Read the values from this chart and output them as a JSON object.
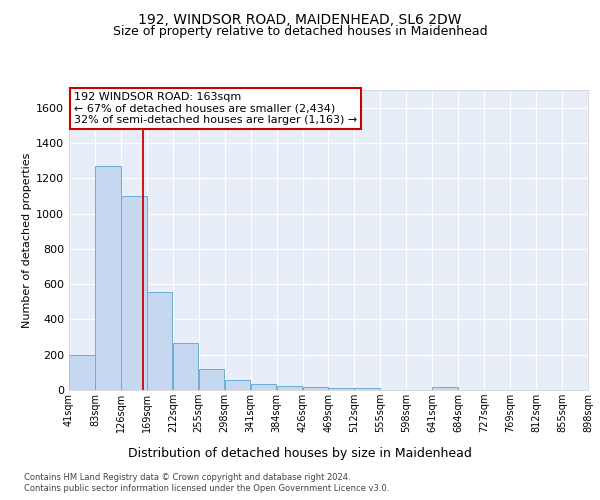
{
  "title1": "192, WINDSOR ROAD, MAIDENHEAD, SL6 2DW",
  "title2": "Size of property relative to detached houses in Maidenhead",
  "xlabel": "Distribution of detached houses by size in Maidenhead",
  "ylabel": "Number of detached properties",
  "footer1": "Contains HM Land Registry data © Crown copyright and database right 2024.",
  "footer2": "Contains public sector information licensed under the Open Government Licence v3.0.",
  "annotation_line1": "192 WINDSOR ROAD: 163sqm",
  "annotation_line2": "← 67% of detached houses are smaller (2,434)",
  "annotation_line3": "32% of semi-detached houses are larger (1,163) →",
  "bar_color": "#c5d8f0",
  "bar_edge_color": "#6aaed6",
  "vline_color": "#cc0000",
  "vline_x": 163,
  "ylim": [
    0,
    1700
  ],
  "yticks": [
    0,
    200,
    400,
    600,
    800,
    1000,
    1200,
    1400,
    1600
  ],
  "bin_edges": [
    41,
    84,
    127,
    170,
    213,
    256,
    299,
    342,
    385,
    428,
    471,
    514,
    557,
    600,
    643,
    686,
    729,
    772,
    815,
    858,
    901
  ],
  "bin_values": [
    200,
    1270,
    1100,
    555,
    265,
    120,
    58,
    32,
    20,
    15,
    10,
    10,
    0,
    0,
    15,
    0,
    0,
    0,
    0,
    0
  ],
  "xtick_labels": [
    "41sqm",
    "83sqm",
    "126sqm",
    "169sqm",
    "212sqm",
    "255sqm",
    "298sqm",
    "341sqm",
    "384sqm",
    "426sqm",
    "469sqm",
    "512sqm",
    "555sqm",
    "598sqm",
    "641sqm",
    "684sqm",
    "727sqm",
    "769sqm",
    "812sqm",
    "855sqm",
    "898sqm"
  ],
  "background_color": "#e8eef8",
  "grid_color": "#ffffff",
  "annotation_box_color": "#ffffff",
  "annotation_box_edge": "#cc0000",
  "title_fontsize": 10,
  "subtitle_fontsize": 9,
  "ylabel_fontsize": 8,
  "xlabel_fontsize": 9,
  "ytick_fontsize": 8,
  "xtick_fontsize": 7,
  "footer_fontsize": 6,
  "annot_fontsize": 8
}
